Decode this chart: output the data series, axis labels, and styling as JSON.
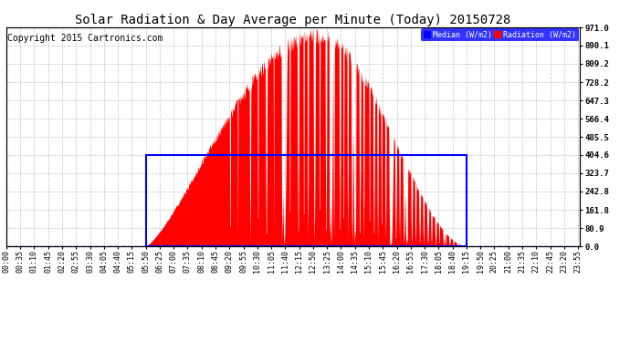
{
  "title": "Solar Radiation & Day Average per Minute (Today) 20150728",
  "copyright": "Copyright 2015 Cartronics.com",
  "ylabel_right_ticks": [
    0.0,
    80.9,
    161.8,
    242.8,
    323.7,
    404.6,
    485.5,
    566.4,
    647.3,
    728.2,
    809.2,
    890.1,
    971.0
  ],
  "ymax": 971.0,
  "ymin": 0.0,
  "day_average": 404.6,
  "radiation_color": "#FF0000",
  "median_color": "#0000FF",
  "background_color": "#FFFFFF",
  "grid_color": "#AAAAAA",
  "title_fontsize": 10,
  "copyright_fontsize": 7,
  "tick_fontsize": 6,
  "legend_median_label": "Median (W/m2)",
  "legend_radiation_label": "Radiation (W/m2)",
  "sunrise_minute": 350,
  "sunset_minute": 1155,
  "total_minutes": 1440,
  "peak_value": 971.0
}
